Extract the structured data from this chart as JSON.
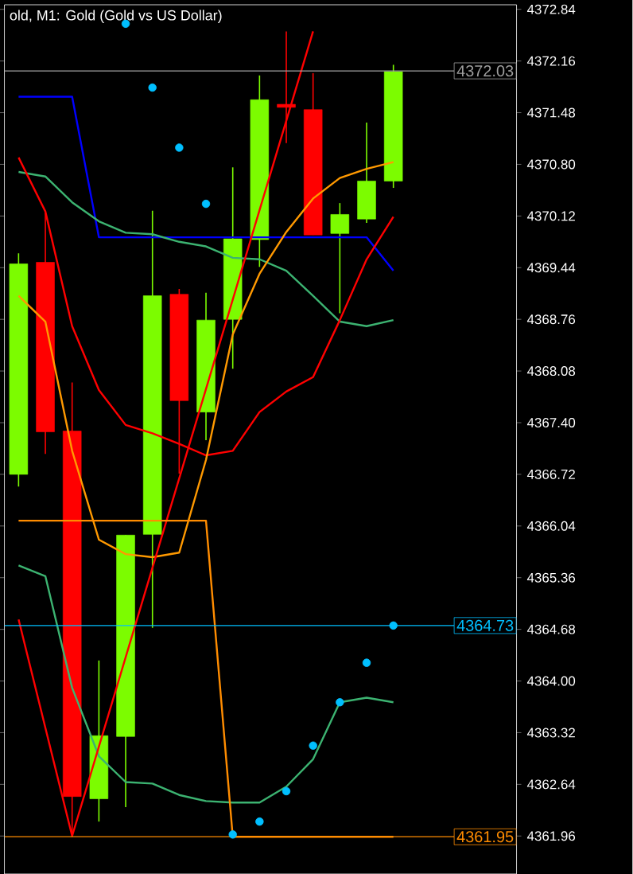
{
  "chart_data": {
    "type": "candlestick",
    "title": "old, M1:  Gold (Gold vs US Dollar)",
    "categories": [
      null,
      null,
      null,
      null,
      null,
      null,
      null,
      null,
      null,
      null,
      null,
      null,
      null,
      null,
      null
    ],
    "ohlc": [
      [
        4366.72,
        4369.63,
        4366.56,
        4369.49
      ],
      [
        4369.51,
        4370.18,
        4366.99,
        4367.28
      ],
      [
        4367.29,
        4367.93,
        4361.96,
        4362.48
      ],
      [
        4362.45,
        4364.27,
        4362.15,
        4363.28
      ],
      [
        4363.27,
        4365.92,
        4362.34,
        4365.92
      ],
      [
        4365.93,
        4370.19,
        4364.7,
        4369.07
      ],
      [
        4369.09,
        4369.16,
        4366.73,
        4367.69
      ],
      [
        4367.54,
        4369.11,
        4367.17,
        4368.75
      ],
      [
        4368.76,
        4370.76,
        4368.11,
        4369.82
      ],
      [
        4369.81,
        4371.97,
        4369.45,
        4371.65
      ],
      [
        4371.59,
        4372.55,
        4371.08,
        4371.55
      ],
      [
        4371.52,
        4372.0,
        4369.87,
        4369.87
      ],
      [
        4369.89,
        4370.29,
        4368.84,
        4370.14
      ],
      [
        4370.08,
        4371.35,
        4370.03,
        4370.58
      ],
      [
        4370.58,
        4372.11,
        4370.49,
        4372.02
      ]
    ],
    "colors": [
      "#7cfc00",
      "#ff0000",
      "#ff0000",
      "#7cfc00",
      "#7cfc00",
      "#7cfc00",
      "#ff0000",
      "#7cfc00",
      "#7cfc00",
      "#7cfc00",
      "#ff0000",
      "#ff0000",
      "#7cfc00",
      "#7cfc00",
      "#7cfc00"
    ],
    "series": [
      {
        "type": "line",
        "color": "#0000ff",
        "values": [
          4371.69,
          4371.69,
          4371.69,
          4369.84,
          4369.84,
          4369.84,
          4369.84,
          4369.84,
          4369.84,
          4369.84,
          4369.84,
          4369.84,
          4369.84,
          4369.84,
          4369.4
        ]
      },
      {
        "type": "line",
        "color": "#3cb371",
        "values": [
          4370.7,
          4370.64,
          4370.3,
          4370.05,
          4369.9,
          4369.88,
          4369.78,
          4369.72,
          4369.57,
          4369.55,
          4369.4,
          4369.07,
          4368.73,
          4368.67,
          4368.75
        ]
      },
      {
        "type": "line",
        "color": "#3cb371",
        "values": [
          4365.52,
          4365.38,
          4363.91,
          4363.01,
          4362.67,
          4362.65,
          4362.5,
          4362.42,
          4362.4,
          4362.4,
          4362.61,
          4362.97,
          4363.72,
          4363.78,
          4363.72
        ]
      },
      {
        "type": "line",
        "color": "#ff0000",
        "values": [
          4370.89,
          4370.18,
          4368.67,
          4367.83,
          4367.37,
          4367.26,
          4367.12,
          4366.97,
          4367.03,
          4367.54,
          4367.81,
          4368.0,
          4368.75,
          4369.55,
          4370.11
        ]
      },
      {
        "type": "line",
        "color": "#ff9900",
        "values": [
          4369.07,
          4368.73,
          4367.03,
          4365.86,
          4365.67,
          4365.63,
          4365.69,
          4366.91,
          4368.56,
          4369.36,
          4369.91,
          4370.35,
          4370.62,
          4370.74,
          4370.83
        ]
      },
      {
        "type": "line",
        "color": "#ff0000",
        "values": [
          4364.81,
          null,
          4361.96,
          null,
          null,
          null,
          null,
          null,
          null,
          null,
          null,
          4372.55,
          null,
          null,
          null
        ]
      },
      {
        "type": "line",
        "color": "#ff8c00",
        "values": [
          4366.11,
          4366.11,
          4366.11,
          4366.11,
          4366.11,
          4366.11,
          4366.11,
          4366.11,
          4361.95,
          4361.95,
          4361.95,
          4361.95,
          4361.95,
          4361.95,
          4361.95
        ]
      },
      {
        "type": "scatter",
        "marker": "circle",
        "color": "#00bfff",
        "values": [
          null,
          null,
          null,
          null,
          4372.65,
          4371.81,
          4371.02,
          4370.28,
          4361.98,
          4362.15,
          4362.55,
          4363.15,
          4363.72,
          4364.24,
          4364.73
        ]
      }
    ],
    "ylim": [
      4361.46,
      4372.9
    ],
    "yticks": [
      4361.96,
      4362.64,
      4363.32,
      {
        "value": 4364.0,
        "label": "4364.00"
      },
      4364.68,
      4365.36,
      4366.04,
      4366.72,
      {
        "value": 4367.4,
        "label": "4367.40"
      },
      4368.08,
      4368.76,
      4369.44,
      4370.12,
      {
        "value": 4370.8,
        "label": "4370.80"
      },
      4371.48,
      4372.16,
      4372.84
    ],
    "tick_labels": "y",
    "ref_lines": [
      {
        "axis": "y",
        "value": 4372.03,
        "label": "4372.03",
        "color": "#a0a0a0"
      },
      {
        "axis": "y",
        "value": 4364.73,
        "label": "4364.73",
        "color": "#00bfff"
      },
      {
        "axis": "y",
        "value": 4361.95,
        "label": "4361.95",
        "color": "#ff8c00"
      }
    ]
  }
}
